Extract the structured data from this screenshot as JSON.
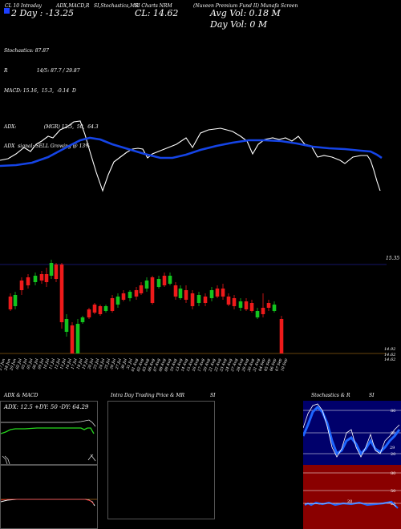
{
  "header": {
    "legend_marker_color": "#1c3fff",
    "seg1": "CL 10 Intraday",
    "seg2": "ADX,MACD,R",
    "seg3": "SI,Stochastics,MR",
    "seg4": "SI Charts NRM",
    "seg5": "(Nuveen Premium Fund II) Munafa Screen",
    "day_line": "2 Day : -13.25",
    "cl_label": "CL: 14.62",
    "avg_vol": "Avg Vol: 0.18 M",
    "day_vol": "Day Vol: 0   M"
  },
  "indicators": {
    "stochastics": "Stochastics: 87.87",
    "r": "R                   14/5: 87.7 / 29.87",
    "macd": "MACD: 15.16,  15.3,  -0.14  D",
    "adx": "ADX:                  (MGR) 12.5,  50,  64.3",
    "adx_signal": "ADX  signal: SELL Growing @ 13%"
  },
  "price_axis": {
    "upper_label": "15.35",
    "lower_label1": "14.92",
    "lower_label2": "14.62",
    "lower_label3": "14.62"
  },
  "dates": [
    "27 Jun",
    "28 Jun",
    "29 Jun",
    "02 Jul",
    "03 Jul",
    "05 Jul",
    "06 Jul",
    "09 Jul",
    "10 Jul",
    "11 Jul",
    "12 Jul",
    "13 Jul",
    "16 Jul",
    "17 Jul",
    "18 Jul",
    "19 Jul",
    "20 Jul",
    "23 Jul",
    "24 Jul",
    "25 Jul",
    "26 Jul",
    "27 Jul",
    "30 Jul",
    "31 Jul",
    "01 Aug",
    "02 Aug",
    "03 Aug",
    "06 Aug",
    "07 Aug",
    "08 Aug",
    "09 Aug",
    "10 Aug",
    "13 Aug",
    "14 Aug",
    "15 Aug",
    "16 Aug",
    "17 Aug",
    "20 Aug",
    "21 Aug",
    "22 Aug",
    "23 Aug",
    "24 Aug",
    "27 Aug",
    "28 Aug",
    "29 Aug",
    "30 Aug",
    "31 Aug",
    "04 Sep",
    "05 Sep",
    "06 Sep",
    "07 Sep",
    "10 Sep"
  ],
  "panels": {
    "adx_title": "ADX   & MACD",
    "adx_readout": "ADX: 12.5  +DY: 50  -DY: 64.29",
    "intraday_title": "Intra  Day Trading Price  & MR",
    "si_title": "SI",
    "stoch_title": "Stochastics  & R",
    "stoch_si": "SI",
    "stoch_levels": [
      "80",
      "50",
      "20"
    ],
    "stoch_bottom_labels": [
      "80",
      "50",
      "20"
    ],
    "rsi_levels": [
      "80",
      "50",
      "20"
    ],
    "stoch_value_label": "29",
    "rsi_value_label": "20"
  },
  "colors": {
    "ma": "#1544e6",
    "price": "#ffffff",
    "up": "#13c41e",
    "down": "#ee1a1a",
    "adx_green": "#27d91e",
    "stoch_bg": "#00006b",
    "rsi_bg": "#8a0000",
    "orange_line": "#b06a1a"
  }
}
